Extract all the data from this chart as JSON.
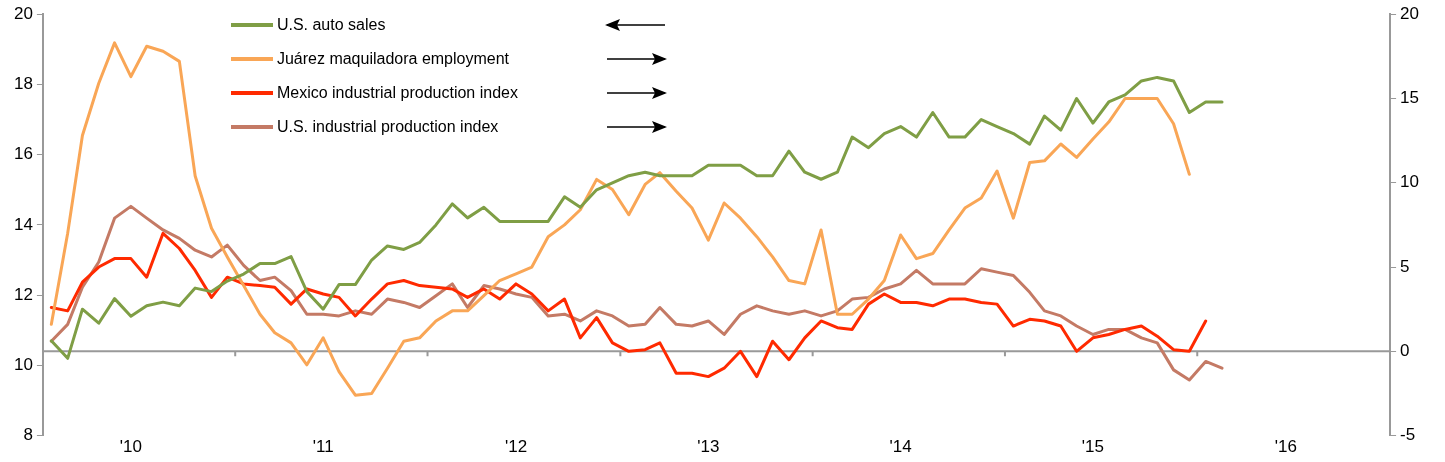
{
  "chart_data": {
    "type": "line",
    "x": [
      "2010-01",
      "2010-02",
      "2010-03",
      "2010-04",
      "2010-05",
      "2010-06",
      "2010-07",
      "2010-08",
      "2010-09",
      "2010-10",
      "2010-11",
      "2010-12",
      "2011-01",
      "2011-02",
      "2011-03",
      "2011-04",
      "2011-05",
      "2011-06",
      "2011-07",
      "2011-08",
      "2011-09",
      "2011-10",
      "2011-11",
      "2011-12",
      "2012-01",
      "2012-02",
      "2012-03",
      "2012-04",
      "2012-05",
      "2012-06",
      "2012-07",
      "2012-08",
      "2012-09",
      "2012-10",
      "2012-11",
      "2012-12",
      "2013-01",
      "2013-02",
      "2013-03",
      "2013-04",
      "2013-05",
      "2013-06",
      "2013-07",
      "2013-08",
      "2013-09",
      "2013-10",
      "2013-11",
      "2013-12",
      "2014-01",
      "2014-02",
      "2014-03",
      "2014-04",
      "2014-05",
      "2014-06",
      "2014-07",
      "2014-08",
      "2014-09",
      "2014-10",
      "2014-11",
      "2014-12",
      "2015-01",
      "2015-02",
      "2015-03",
      "2015-04",
      "2015-05",
      "2015-06",
      "2015-07",
      "2015-08",
      "2015-09",
      "2015-10",
      "2015-11",
      "2015-12",
      "2016-01",
      "2016-02"
    ],
    "series": [
      {
        "name": "U.S. auto sales",
        "color": "#7f9e45",
        "values": [
          10.7,
          10.2,
          11.6,
          11.2,
          11.9,
          11.4,
          11.7,
          11.8,
          11.7,
          12.2,
          12.1,
          12.4,
          12.6,
          12.9,
          12.9,
          13.1,
          12.1,
          11.6,
          12.3,
          12.3,
          13.0,
          13.4,
          13.3,
          13.5,
          14.0,
          14.6,
          14.2,
          14.5,
          14.1,
          14.1,
          14.1,
          14.1,
          14.8,
          14.5,
          15.0,
          15.2,
          15.4,
          15.5,
          15.4,
          15.4,
          15.4,
          15.7,
          15.7,
          15.7,
          15.4,
          15.4,
          16.1,
          15.5,
          15.3,
          15.5,
          16.5,
          16.2,
          16.6,
          16.8,
          16.5,
          17.2,
          16.5,
          16.5,
          17.0,
          16.8,
          16.6,
          16.3,
          17.1,
          16.7,
          17.6,
          16.9,
          17.5,
          17.7,
          18.1,
          18.2,
          18.1,
          17.2,
          17.5,
          17.5
        ]
      },
      {
        "name": "Juárez maquiladora employment",
        "color": "#f9a656",
        "axis": "y2",
        "values": [
          1.6,
          7.0,
          12.8,
          15.9,
          18.3,
          16.3,
          18.1,
          17.8,
          17.2,
          10.4,
          7.3,
          5.6,
          3.9,
          2.2,
          1.1,
          0.5,
          -0.8,
          0.8,
          -1.2,
          -2.6,
          -2.5,
          -1.0,
          0.6,
          0.8,
          1.8,
          2.4,
          2.4,
          3.3,
          4.2,
          4.6,
          5.0,
          6.8,
          7.5,
          8.4,
          10.2,
          9.6,
          8.1,
          9.9,
          10.6,
          9.5,
          8.5,
          6.6,
          8.8,
          7.9,
          6.8,
          5.6,
          4.2,
          4.0,
          7.2,
          2.2,
          2.2,
          3.1,
          4.2,
          6.9,
          5.5,
          5.8,
          7.2,
          8.5,
          9.1,
          10.7,
          7.9,
          11.2,
          11.3,
          12.3,
          11.5,
          12.6,
          13.6,
          15.0,
          15.0,
          15.0,
          13.5,
          10.5,
          null,
          null
        ]
      },
      {
        "name": "Mexico industrial production index",
        "color": "#ff2a00",
        "axis": "y2",
        "values": [
          2.6,
          2.4,
          4.1,
          5.0,
          5.5,
          5.5,
          4.4,
          7.0,
          6.1,
          4.8,
          3.2,
          4.4,
          4.0,
          3.9,
          3.8,
          2.8,
          3.7,
          3.4,
          3.2,
          2.1,
          3.1,
          4.0,
          4.2,
          3.9,
          3.8,
          3.7,
          3.2,
          3.7,
          3.1,
          4.0,
          3.4,
          2.4,
          3.1,
          0.8,
          2.0,
          0.5,
          0.0,
          0.1,
          0.5,
          -1.3,
          -1.3,
          -1.5,
          -1.0,
          0.0,
          -1.5,
          0.6,
          -0.5,
          0.8,
          1.8,
          1.4,
          1.3,
          2.8,
          3.4,
          2.9,
          2.9,
          2.7,
          3.1,
          3.1,
          2.9,
          2.8,
          1.5,
          1.9,
          1.8,
          1.5,
          0.0,
          0.8,
          1.0,
          1.3,
          1.5,
          0.9,
          0.1,
          0.0,
          1.8,
          null
        ]
      },
      {
        "name": "U.S. industrial production index",
        "color": "#c47a65",
        "axis": "y2",
        "values": [
          0.6,
          1.6,
          3.8,
          5.3,
          7.9,
          8.6,
          7.9,
          7.2,
          6.7,
          6.0,
          5.6,
          6.3,
          5.1,
          4.2,
          4.4,
          3.6,
          2.2,
          2.2,
          2.1,
          2.4,
          2.2,
          3.1,
          2.9,
          2.6,
          3.3,
          4.0,
          2.6,
          3.9,
          3.7,
          3.4,
          3.2,
          2.1,
          2.2,
          1.8,
          2.4,
          2.1,
          1.5,
          1.6,
          2.6,
          1.6,
          1.5,
          1.8,
          1.0,
          2.2,
          2.7,
          2.4,
          2.2,
          2.4,
          2.1,
          2.4,
          3.1,
          3.2,
          3.7,
          4.0,
          4.8,
          4.0,
          4.0,
          4.0,
          4.9,
          4.7,
          4.5,
          3.5,
          2.4,
          2.1,
          1.5,
          1.0,
          1.3,
          1.3,
          0.8,
          0.5,
          -1.1,
          -1.7,
          -0.6,
          -1.0
        ]
      }
    ],
    "xlim": [
      "2009-12-16",
      "2016-12-16"
    ],
    "xticks": [
      {
        "value": "2010-06",
        "label": "'10"
      },
      {
        "value": "2010-12-16",
        "label": null
      },
      {
        "value": "2011-06",
        "label": "'11"
      },
      {
        "value": "2011-12-16",
        "label": null
      },
      {
        "value": "2012-06",
        "label": "'12"
      },
      {
        "value": "2012-12-16",
        "label": null
      },
      {
        "value": "2013-06",
        "label": "'13"
      },
      {
        "value": "2013-12-16",
        "label": null
      },
      {
        "value": "2014-06",
        "label": "'14"
      },
      {
        "value": "2014-12-16",
        "label": null
      },
      {
        "value": "2015-06",
        "label": "'15"
      },
      {
        "value": "2015-12-16",
        "label": null
      },
      {
        "value": "2016-06",
        "label": "'16"
      }
    ],
    "ylim": [
      8,
      20
    ],
    "yticks": [
      8,
      10,
      12,
      14,
      16,
      18,
      20
    ],
    "y2lim": [
      -5,
      20
    ],
    "y2ticks": [
      -5,
      0,
      5,
      10,
      15,
      20
    ],
    "ref_lines": [
      {
        "axis": "y2",
        "value": 0,
        "color": "#999999"
      }
    ],
    "grid": false,
    "legend": "top left",
    "line_style": "solid"
  }
}
